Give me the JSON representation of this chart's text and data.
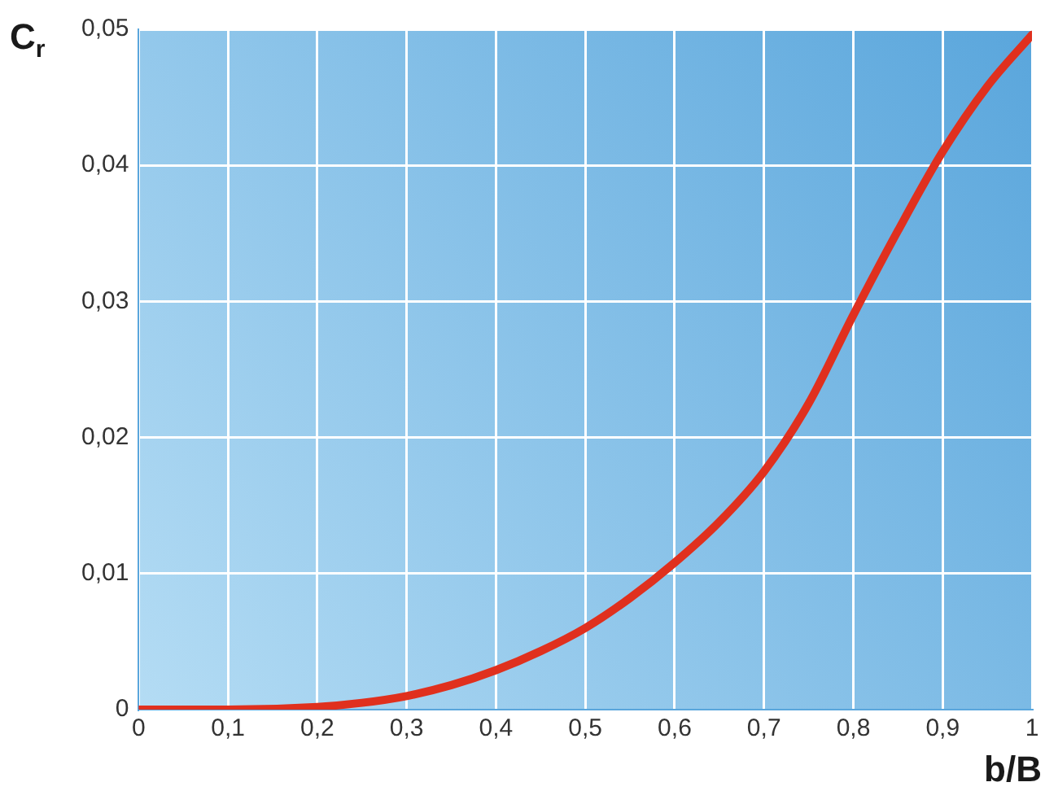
{
  "chart_data": {
    "type": "line",
    "xlabel": "b/B",
    "ylabel": "C$_{r}$",
    "x": [
      0,
      0.1,
      0.2,
      0.25,
      0.3,
      0.35,
      0.4,
      0.45,
      0.5,
      0.55,
      0.6,
      0.65,
      0.7,
      0.75,
      0.8,
      0.85,
      0.9,
      0.95,
      1
    ],
    "series": [
      {
        "color": "#e0301e",
        "values": [
          0,
          0,
          0.0002,
          0.0005,
          0.001,
          0.0018,
          0.0029,
          0.0043,
          0.006,
          0.0082,
          0.0108,
          0.0138,
          0.0175,
          0.0225,
          0.029,
          0.0352,
          0.041,
          0.0458,
          0.0496
        ]
      }
    ],
    "xlim": [
      0,
      1
    ],
    "xticks": [
      0,
      {
        "value": 0.1,
        "label": "0,1"
      },
      {
        "value": 0.2,
        "label": "0,2"
      },
      {
        "value": 0.3,
        "label": "0,3"
      },
      {
        "value": 0.4,
        "label": "0,4"
      },
      {
        "value": 0.5,
        "label": "0,5"
      },
      {
        "value": 0.6,
        "label": "0,6"
      },
      {
        "value": 0.7,
        "label": "0,7"
      },
      {
        "value": 0.8,
        "label": "0,8"
      },
      {
        "value": 0.9,
        "label": "0,9"
      },
      1
    ],
    "ylim": [
      0,
      0.05
    ],
    "yticks": [
      0,
      {
        "value": 0.01,
        "label": "0,01"
      },
      {
        "value": 0.02,
        "label": "0,02"
      },
      {
        "value": 0.03,
        "label": "0,03"
      },
      {
        "value": 0.04,
        "label": "0,04"
      },
      {
        "value": 0.05,
        "label": "0,05"
      }
    ],
    "grid": true,
    "legend": false,
    "marker": "none",
    "line_style": "solid"
  }
}
